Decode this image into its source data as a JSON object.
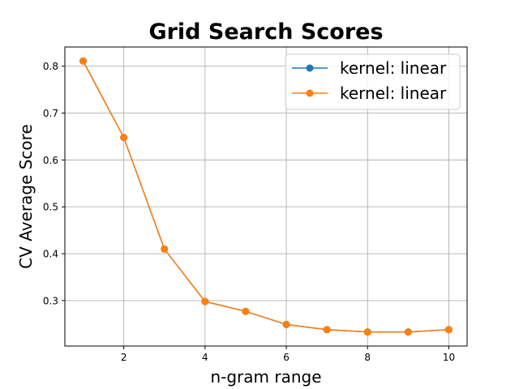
{
  "chart_data": {
    "type": "line",
    "title": "Grid Search Scores",
    "xlabel": "n-gram range",
    "ylabel": "CV Average Score",
    "x": [
      1,
      2,
      3,
      4,
      5,
      6,
      7,
      8,
      9,
      10
    ],
    "xticks": [
      2,
      4,
      6,
      8,
      10
    ],
    "yticks": [
      0.3,
      0.4,
      0.5,
      0.6,
      0.7,
      0.8
    ],
    "xlim": [
      0.55,
      10.45
    ],
    "ylim": [
      0.203,
      0.841
    ],
    "grid": true,
    "legend_position": "top-right",
    "series": [
      {
        "name": "kernel: linear",
        "color": "#1f77b4",
        "values": [
          0.811,
          0.648,
          0.41,
          0.298,
          0.277,
          0.249,
          0.238,
          0.233,
          0.233,
          0.238
        ]
      },
      {
        "name": "kernel: linear",
        "color": "#ff7f0e",
        "values": [
          0.811,
          0.648,
          0.41,
          0.298,
          0.277,
          0.249,
          0.238,
          0.233,
          0.233,
          0.238
        ]
      }
    ]
  }
}
